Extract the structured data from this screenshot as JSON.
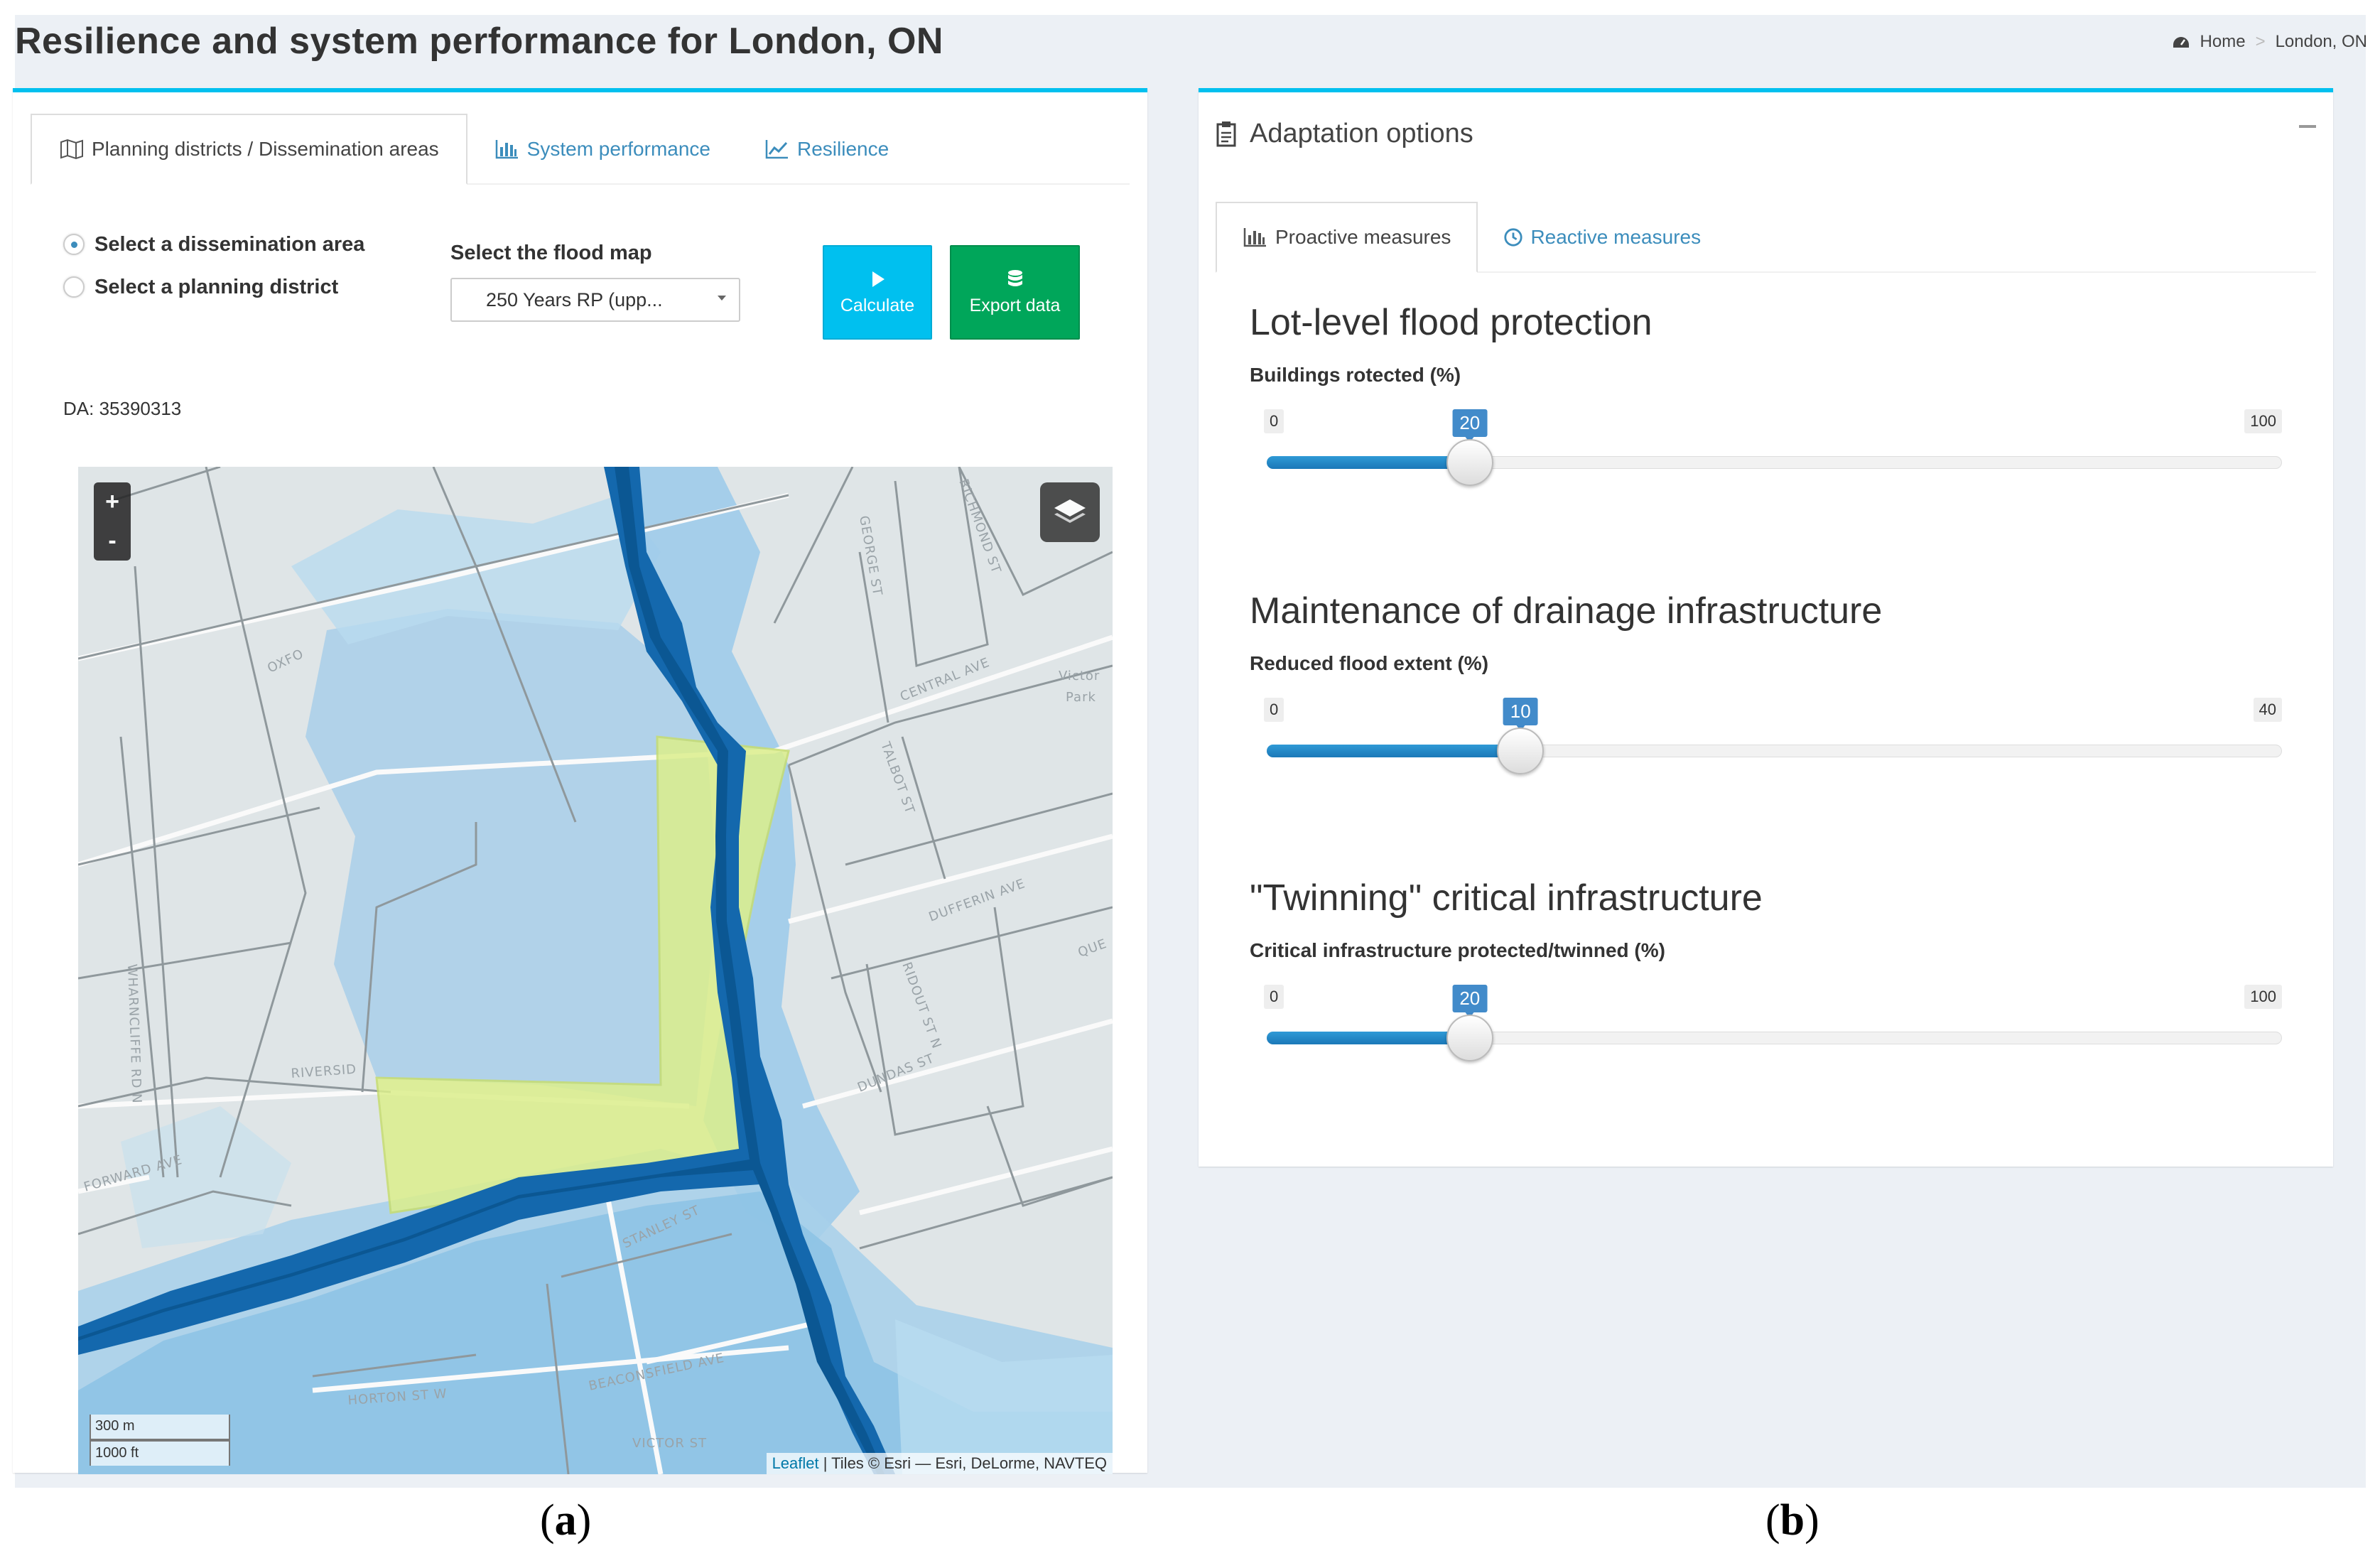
{
  "page": {
    "title": "Resilience and system performance for London, ON",
    "breadcrumb": {
      "home": "Home",
      "current": "London, ON"
    }
  },
  "left_panel": {
    "tabs": [
      {
        "label": "Planning districts / Dissemination areas",
        "icon": "map-icon",
        "active": true
      },
      {
        "label": "System performance",
        "icon": "bar-chart-icon",
        "active": false
      },
      {
        "label": "Resilience",
        "icon": "line-chart-icon",
        "active": false
      }
    ],
    "radio": {
      "option1": "Select a dissemination area",
      "option2": "Select a planning district",
      "selected": "option1"
    },
    "da_text": "DA: 35390313",
    "flood_map": {
      "label": "Select the flood map",
      "value": "250 Years RP (upp..."
    },
    "buttons": {
      "calculate": "Calculate",
      "export": "Export data"
    },
    "map": {
      "zoom_in": "+",
      "zoom_out": "-",
      "scale_metric": "300 m",
      "scale_imperial": "1000 ft",
      "attribution_link": "Leaflet",
      "attribution_text": " | Tiles © Esri — Esri, DeLorme, NAVTEQ",
      "streets": [
        "OXFO",
        "CENTRAL AVE",
        "DUFFERIN AVE",
        "RIVERSID",
        "FORWARD AVE",
        "STANLEY ST",
        "BEACONSFIELD AVE",
        "VICTOR ST",
        "HORTON ST W",
        "DUNDAS ST",
        "QUE",
        "Victor Park",
        "GEORGE ST",
        "RICHMOND ST",
        "TALBOT ST",
        "RIDOUT ST N",
        "WHARNCLIFFE RD N"
      ]
    }
  },
  "right_panel": {
    "header": "Adaptation options",
    "tabs": [
      {
        "label": "Proactive measures",
        "icon": "bar-chart-icon",
        "active": true
      },
      {
        "label": "Reactive measures",
        "icon": "clock-icon",
        "active": false
      }
    ],
    "measures": [
      {
        "title": "Lot-level flood protection",
        "label": "Buildings rotected (%)",
        "min": 0,
        "max": 100,
        "value": 20
      },
      {
        "title": "Maintenance of drainage infrastructure",
        "label": "Reduced flood extent (%)",
        "min": 0,
        "max": 40,
        "value": 10
      },
      {
        "title": "\"Twinning\" critical infrastructure",
        "label": "Critical infrastructure protected/twinned (%)",
        "min": 0,
        "max": 100,
        "value": 20
      }
    ]
  },
  "captions": {
    "a": "a",
    "b": "b"
  },
  "colors": {
    "accent": "#00c0ef",
    "export": "#00a65a",
    "slider": "#428bca",
    "polygon": "#d7ed8a",
    "river": "#1a6fb0"
  }
}
